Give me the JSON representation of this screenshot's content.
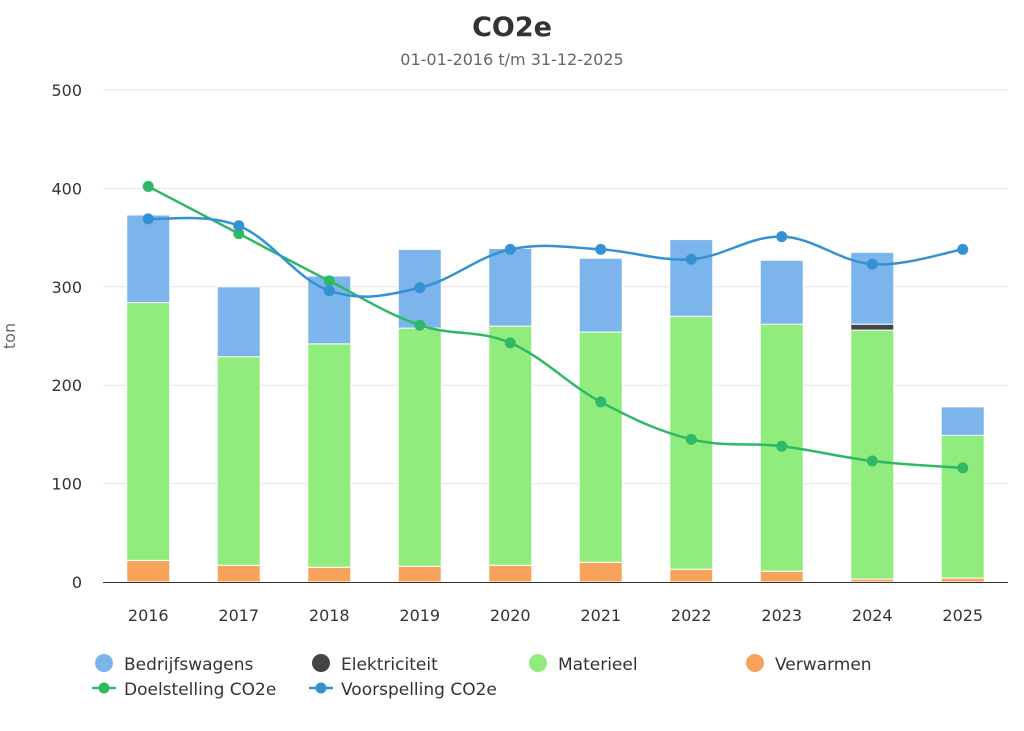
{
  "chart_data": {
    "type": "bar",
    "stacked": true,
    "title": "CO2e",
    "subtitle": "01-01-2016 t/m 31-12-2025",
    "ylabel": "ton",
    "ylim": [
      0,
      500
    ],
    "yticks": [
      0,
      100,
      200,
      300,
      400,
      500
    ],
    "grid": true,
    "legend_position": "bottom",
    "categories": [
      "2016",
      "2017",
      "2018",
      "2019",
      "2020",
      "2021",
      "2022",
      "2023",
      "2024",
      "2025"
    ],
    "series": [
      {
        "name": "Bedrijfswagens",
        "kind": "bar",
        "color": "#7cb5ec",
        "values": [
          89,
          71,
          69,
          80,
          79,
          75,
          78,
          65,
          73,
          29
        ]
      },
      {
        "name": "Elektriciteit",
        "kind": "bar",
        "color": "#434348",
        "values": [
          0,
          0,
          0,
          0,
          0,
          0,
          0,
          0,
          6,
          0
        ]
      },
      {
        "name": "Materieel",
        "kind": "bar",
        "color": "#90ed7d",
        "values": [
          262,
          212,
          227,
          242,
          243,
          234,
          257,
          251,
          253,
          145
        ]
      },
      {
        "name": "Verwarmen",
        "kind": "bar",
        "color": "#f7a35c",
        "values": [
          22,
          17,
          15,
          16,
          17,
          20,
          13,
          11,
          3,
          4
        ]
      },
      {
        "name": "Doelstelling CO2e",
        "kind": "line",
        "color": "#2fb866",
        "values": [
          402,
          354,
          306,
          261,
          243,
          183,
          145,
          138,
          123,
          116
        ]
      },
      {
        "name": "Voorspelling CO2e",
        "kind": "line",
        "color": "#3391d4",
        "values": [
          369,
          362,
          296,
          299,
          338,
          338,
          328,
          351,
          323,
          338
        ]
      }
    ]
  }
}
